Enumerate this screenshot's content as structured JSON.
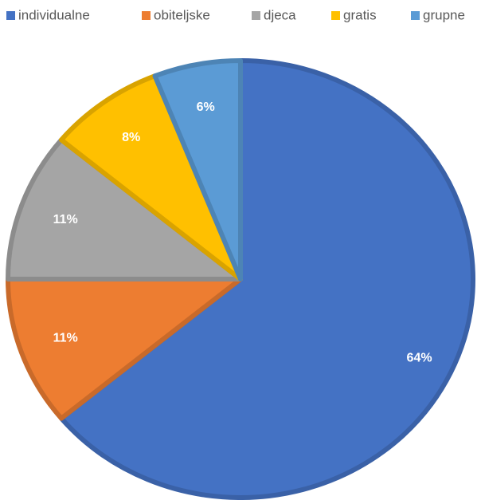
{
  "chart_data": {
    "type": "pie",
    "categories": [
      "individualne",
      "obiteljske",
      "djeca",
      "gratis",
      "grupne"
    ],
    "values": [
      64,
      11,
      11,
      8,
      6
    ],
    "value_labels": [
      "64%",
      "11%",
      "11%",
      "8%",
      "6%"
    ],
    "colors": [
      "#4472c4",
      "#ed7d31",
      "#a5a5a5",
      "#ffc000",
      "#5b9bd5"
    ],
    "legend": "top"
  }
}
